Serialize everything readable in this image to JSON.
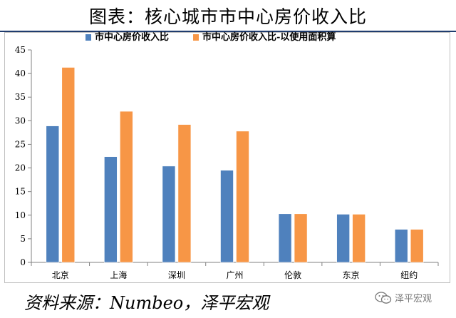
{
  "title": "图表：核心城市市中心房价收入比",
  "source_note": "资料来源：Numbeo，泽平宏观",
  "watermark": {
    "text": "泽平宏观",
    "icon": "wechat-icon"
  },
  "colors": {
    "series1": "#4f81bd",
    "series2": "#f79646",
    "title_rule": "#1f3c6e"
  },
  "chart_data": {
    "type": "bar",
    "categories": [
      "北京",
      "上海",
      "深圳",
      "广州",
      "伦敦",
      "东京",
      "纽约"
    ],
    "series": [
      {
        "name": "市中心房价收入比",
        "values": [
          28.9,
          22.4,
          20.4,
          19.5,
          10.3,
          10.2,
          7.0
        ],
        "color": "#4f81bd"
      },
      {
        "name": "市中心房价收入比-以使用面积算",
        "values": [
          41.3,
          32.0,
          29.2,
          27.8,
          10.3,
          10.2,
          7.0
        ],
        "color": "#f79646"
      }
    ],
    "ylim": [
      0,
      45
    ],
    "yticks": [
      0,
      5,
      10,
      15,
      20,
      25,
      30,
      35,
      40,
      45
    ],
    "grid": false,
    "legend_position": "top-center"
  }
}
